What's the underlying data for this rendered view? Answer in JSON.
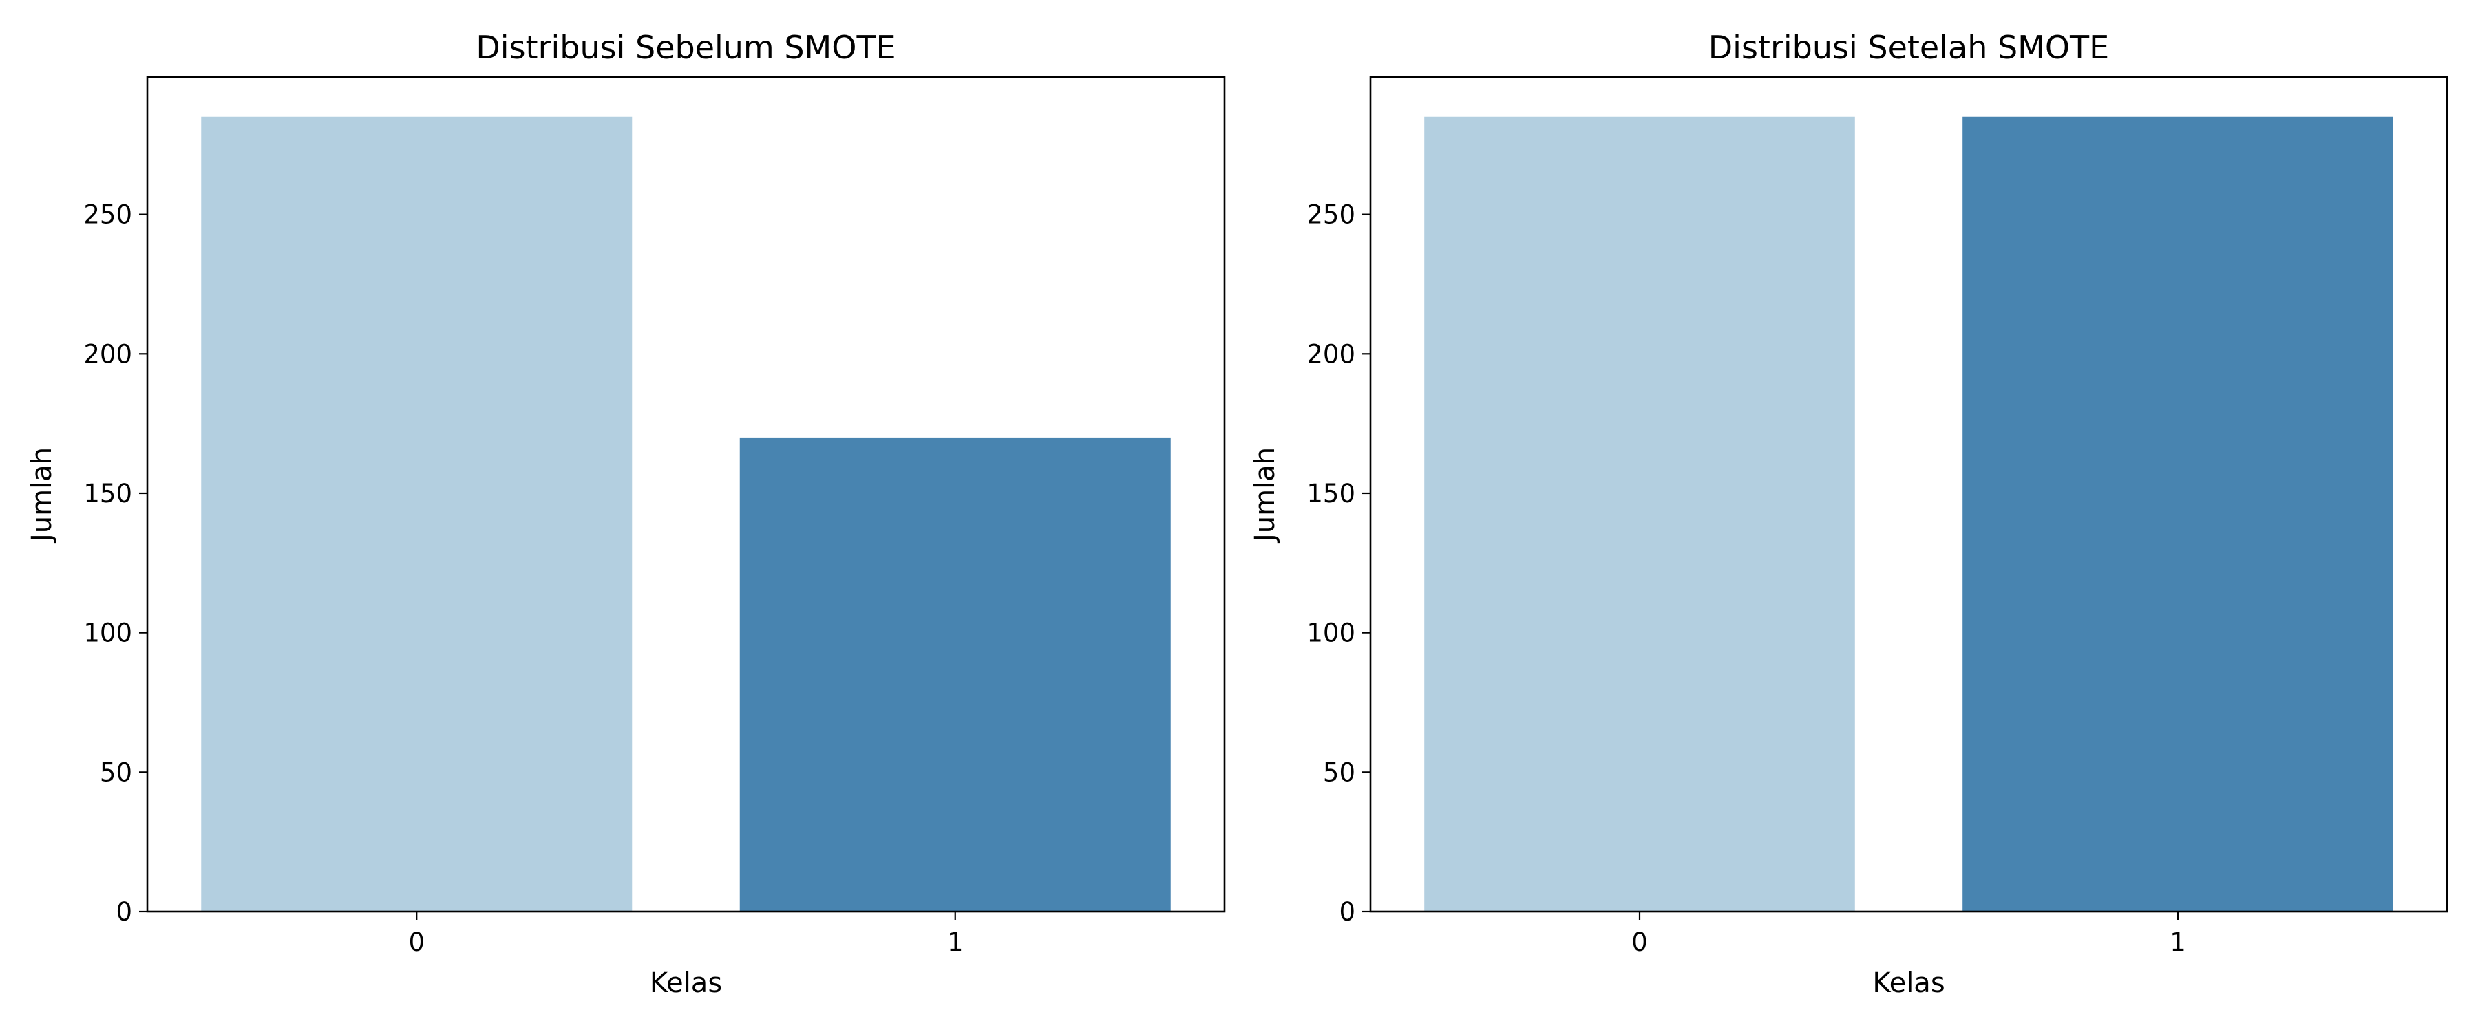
{
  "chart_data": [
    {
      "type": "bar",
      "title": "Distribusi Sebelum SMOTE",
      "xlabel": "Kelas",
      "ylabel": "Jumlah",
      "categories": [
        "0",
        "1"
      ],
      "values": [
        285,
        170
      ],
      "ylim": [
        0,
        299.25
      ],
      "yticks": [
        0,
        50,
        100,
        150,
        200,
        250
      ],
      "grid": false,
      "legend": "none",
      "colors": [
        "#b3cfe0",
        "#4884b0"
      ]
    },
    {
      "type": "bar",
      "title": "Distribusi Setelah SMOTE",
      "xlabel": "Kelas",
      "ylabel": "Jumlah",
      "categories": [
        "0",
        "1"
      ],
      "values": [
        285,
        285
      ],
      "ylim": [
        0,
        299.25
      ],
      "yticks": [
        0,
        50,
        100,
        150,
        200,
        250
      ],
      "grid": false,
      "legend": "none",
      "colors": [
        "#b3cfe0",
        "#4884b0"
      ]
    }
  ]
}
